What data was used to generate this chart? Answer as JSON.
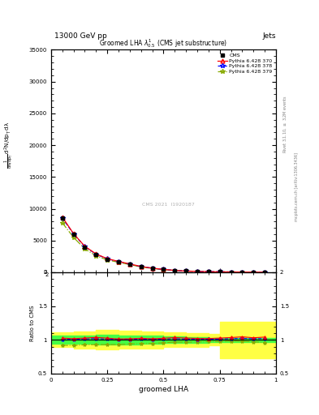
{
  "title_top": "13000 GeV pp",
  "title_right": "Jets",
  "plot_title": "Groomed LHA $\\lambda^{1}_{0.5}$ (CMS jet substructure)",
  "xlabel": "groomed LHA",
  "ylabel_main": "$\\frac{1}{\\mathrm{d}N/\\mathrm{d}p_T}\\, \\mathrm{d}^2N / \\mathrm{d}p_T\\, \\mathrm{d}\\lambda$",
  "ylabel_ratio": "Ratio to CMS",
  "right_label": "mcplots.cern.ch [arXiv:1306.3436]",
  "right_label2": "Rivet 3.1.10, $\\geq$ 3.2M events",
  "watermark": "CMS 2021  I1920187",
  "x_data": [
    0.05,
    0.1,
    0.15,
    0.2,
    0.25,
    0.3,
    0.35,
    0.4,
    0.45,
    0.5,
    0.55,
    0.6,
    0.65,
    0.7,
    0.75,
    0.8,
    0.85,
    0.9,
    0.95
  ],
  "cms_y": [
    8500,
    6000,
    4000,
    2800,
    2100,
    1700,
    1300,
    900,
    650,
    450,
    300,
    200,
    150,
    110,
    80,
    60,
    45,
    35,
    25
  ],
  "cms_yerr": [
    200,
    150,
    100,
    80,
    60,
    50,
    40,
    30,
    25,
    20,
    15,
    10,
    8,
    6,
    5,
    4,
    3,
    2,
    2
  ],
  "py370_y": [
    8700,
    6100,
    4100,
    2900,
    2150,
    1720,
    1320,
    920,
    660,
    460,
    310,
    205,
    153,
    112,
    82,
    62,
    47,
    36,
    26
  ],
  "py378_y": [
    8550,
    6050,
    4050,
    2850,
    2120,
    1710,
    1310,
    910,
    655,
    455,
    305,
    202,
    151,
    111,
    81,
    61,
    46,
    35,
    25
  ],
  "py379_y": [
    7800,
    5500,
    3700,
    2600,
    1950,
    1580,
    1220,
    850,
    615,
    430,
    290,
    193,
    145,
    107,
    78,
    59,
    44,
    34,
    24
  ],
  "ratio_py370": [
    1.024,
    1.017,
    1.025,
    1.035,
    1.024,
    1.012,
    1.015,
    1.022,
    1.015,
    1.022,
    1.033,
    1.025,
    1.02,
    1.018,
    1.025,
    1.033,
    1.044,
    1.03,
    1.04
  ],
  "ratio_py378": [
    1.006,
    1.008,
    1.013,
    1.018,
    1.01,
    1.006,
    1.008,
    1.011,
    1.008,
    1.011,
    1.017,
    1.01,
    1.007,
    1.009,
    1.012,
    1.017,
    1.022,
    1.014,
    1.02
  ],
  "ratio_py379": [
    0.918,
    0.917,
    0.925,
    0.929,
    0.929,
    0.929,
    0.938,
    0.944,
    0.946,
    0.956,
    0.967,
    0.965,
    0.967,
    0.973,
    0.975,
    0.983,
    0.978,
    0.971,
    0.96
  ],
  "green_band_x": [
    0.0,
    0.1,
    0.2,
    0.3,
    0.4,
    0.5,
    0.6,
    0.7,
    0.75,
    1.0
  ],
  "green_band_lo": [
    0.94,
    0.94,
    0.925,
    0.935,
    0.94,
    0.95,
    0.96,
    0.97,
    0.97,
    0.97
  ],
  "green_band_hi": [
    1.06,
    1.06,
    1.075,
    1.065,
    1.06,
    1.05,
    1.04,
    1.03,
    1.03,
    1.03
  ],
  "yellow_band_lo": [
    0.89,
    0.875,
    0.855,
    0.865,
    0.875,
    0.89,
    0.9,
    0.915,
    0.73,
    0.73
  ],
  "yellow_band_hi": [
    1.11,
    1.125,
    1.145,
    1.135,
    1.125,
    1.11,
    1.1,
    1.085,
    1.27,
    1.27
  ],
  "color_cms": "#000000",
  "color_py370": "#ff0000",
  "color_py378": "#0000ff",
  "color_py379": "#88aa00",
  "ylim_main": [
    0,
    35000
  ],
  "ylim_ratio": [
    0.5,
    2.0
  ],
  "xlim": [
    0.0,
    1.0
  ],
  "yticks_main": [
    0,
    5000,
    10000,
    15000,
    20000,
    25000,
    30000,
    35000
  ],
  "ytick_labels_main": [
    "0",
    "5000",
    "10000",
    "15000",
    "20000",
    "25000",
    "30000",
    "35000"
  ],
  "bg_color": "#ffffff"
}
